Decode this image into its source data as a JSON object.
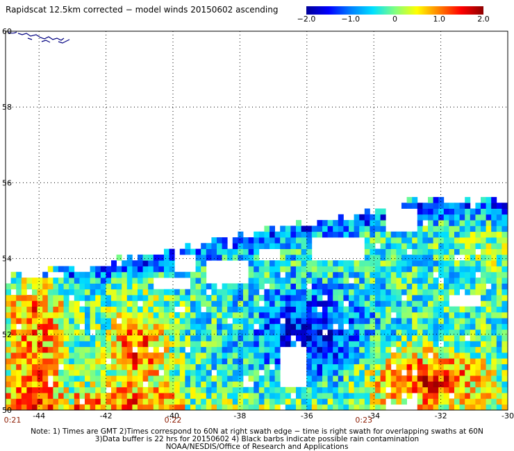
{
  "title": "Rapidscat 12.5km corrected − model winds 20150602 ascending",
  "colorbar": {
    "ticks": [
      "−2.0",
      "−1.0",
      "0",
      "1.0",
      "2.0"
    ],
    "tick_values": [
      -2.0,
      -1.0,
      0,
      1.0,
      2.0
    ],
    "colors": [
      "#00009a",
      "#0000ff",
      "#0080ff",
      "#00e0ff",
      "#80ff80",
      "#ffff00",
      "#ff8000",
      "#ff0000",
      "#900000"
    ]
  },
  "map": {
    "lat_range": [
      50,
      60
    ],
    "lon_range": [
      -45,
      -30
    ],
    "lat_ticks": [
      "50",
      "52",
      "54",
      "56",
      "58",
      "60"
    ],
    "lat_values": [
      50,
      52,
      54,
      56,
      58,
      60
    ],
    "lon_ticks": [
      "-44",
      "-42",
      "-40",
      "-38",
      "-36",
      "-34",
      "-32",
      "-30"
    ],
    "lon_values": [
      -44,
      -42,
      -40,
      -38,
      -36,
      -34,
      -32,
      -30
    ],
    "time_labels": [
      {
        "text": "0:21",
        "lon": -45.0
      },
      {
        "text": "0:22",
        "lon": -40.0
      },
      {
        "text": "0:23",
        "lon": -34.3
      }
    ]
  },
  "notes": {
    "line1": "Note: 1) Times are GMT 2)Times correspond to 60N at right swath edge − time is right swath for overlapping swaths at 60N",
    "line2": "3)Data buffer is 22 hrs for 20150602 4) Black barbs indicate possible rain contamination",
    "line3": "NOAA/NESDIS/Office of Research and Applications"
  }
}
